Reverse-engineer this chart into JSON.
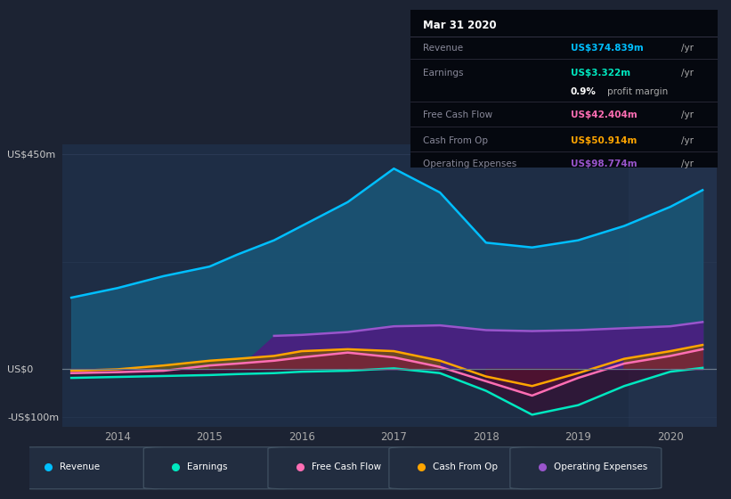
{
  "bg_color": "#1c2333",
  "plot_bg_color": "#1e2d45",
  "x_years": [
    2013.5,
    2014.0,
    2014.5,
    2015.0,
    2015.3,
    2015.7,
    2016.0,
    2016.5,
    2017.0,
    2017.5,
    2018.0,
    2018.5,
    2019.0,
    2019.5,
    2020.0,
    2020.35
  ],
  "revenue": [
    150,
    170,
    195,
    215,
    240,
    270,
    300,
    350,
    420,
    370,
    265,
    255,
    270,
    300,
    340,
    375
  ],
  "earnings": [
    -18,
    -16,
    -14,
    -12,
    -10,
    -8,
    -5,
    -3,
    2,
    -8,
    -45,
    -95,
    -75,
    -35,
    -5,
    3
  ],
  "free_cash_flow": [
    -8,
    -6,
    -3,
    8,
    12,
    18,
    25,
    35,
    25,
    5,
    -25,
    -55,
    -18,
    12,
    28,
    42
  ],
  "cash_from_op": [
    -3,
    0,
    8,
    18,
    22,
    28,
    38,
    42,
    38,
    18,
    -15,
    -35,
    -8,
    22,
    38,
    51
  ],
  "operating_expenses": [
    0,
    0,
    0,
    0,
    0,
    70,
    72,
    78,
    90,
    92,
    82,
    80,
    82,
    86,
    90,
    99
  ],
  "revenue_color": "#00bfff",
  "earnings_color": "#00e8c0",
  "fcf_color": "#ff6eb4",
  "cashop_color": "#ffa500",
  "opex_color": "#9955cc",
  "info_box": {
    "title": "Mar 31 2020",
    "revenue_label": "Revenue",
    "revenue_value": "US$374.839m",
    "revenue_color": "#00bfff",
    "earnings_label": "Earnings",
    "earnings_value": "US$3.322m",
    "earnings_color": "#00e8c0",
    "fcf_label": "Free Cash Flow",
    "fcf_value": "US$42.404m",
    "fcf_color": "#ff6eb4",
    "cashop_label": "Cash From Op",
    "cashop_value": "US$50.914m",
    "cashop_color": "#ffa500",
    "opex_label": "Operating Expenses",
    "opex_value": "US$98.774m",
    "opex_color": "#9955cc"
  },
  "legend_items": [
    {
      "color": "#00bfff",
      "label": "Revenue"
    },
    {
      "color": "#00e8c0",
      "label": "Earnings"
    },
    {
      "color": "#ff6eb4",
      "label": "Free Cash Flow"
    },
    {
      "color": "#ffa500",
      "label": "Cash From Op"
    },
    {
      "color": "#9955cc",
      "label": "Operating Expenses"
    }
  ],
  "ylim": [
    -120,
    470
  ],
  "xlim": [
    2013.4,
    2020.5
  ],
  "xticks": [
    2014,
    2015,
    2016,
    2017,
    2018,
    2019,
    2020
  ],
  "ylabel_top": "US$450m",
  "ylabel_zero": "US$0",
  "ylabel_neg": "-US$100m"
}
